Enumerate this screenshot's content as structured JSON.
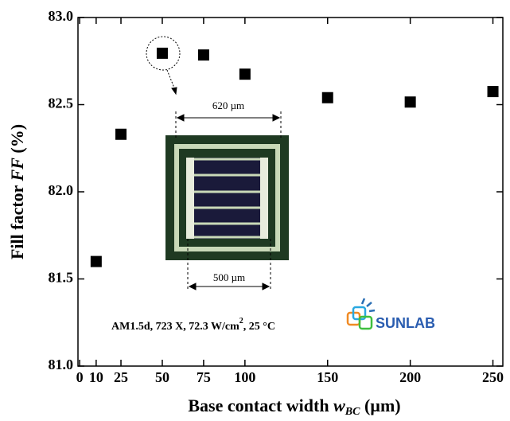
{
  "chart_data": {
    "type": "scatter",
    "x_label": [
      "Base contact width ",
      "w",
      "BC",
      " (µm)"
    ],
    "y_label": [
      "Fill factor ",
      "FF",
      " (%)"
    ],
    "x": [
      10,
      25,
      50,
      75,
      100,
      150,
      200,
      250
    ],
    "series": [
      {
        "color": "#000000",
        "values": [
          81.6,
          82.33,
          82.795,
          82.785,
          82.675,
          82.54,
          82.515,
          82.575
        ]
      }
    ],
    "xlim": [
      -1,
      256
    ],
    "xticks": [
      0,
      10,
      25,
      50,
      75,
      100,
      150,
      200,
      250
    ],
    "ylim": [
      81,
      83
    ],
    "yticks": [
      {
        "value": 81,
        "label": "81.0"
      },
      81.5,
      {
        "value": 82,
        "label": "82.0"
      },
      82.5,
      {
        "value": 83,
        "label": "83.0"
      }
    ],
    "annotation": [
      "AM1.5d, 723 X, 72.3 W/cm",
      "2",
      ", 25 °C"
    ],
    "inset_labels": [
      "620 µm",
      "500 µm"
    ],
    "logo": "SUNLAB"
  }
}
